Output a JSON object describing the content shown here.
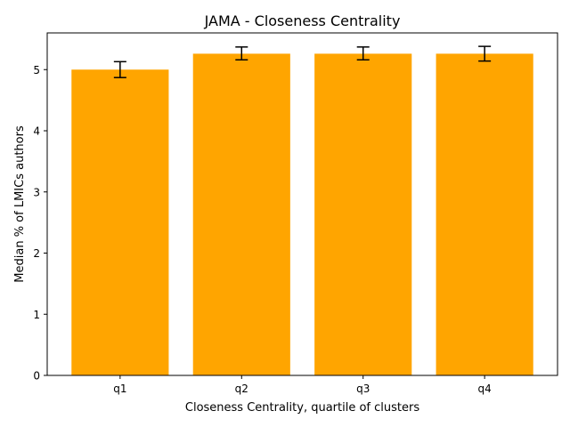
{
  "chart_data": {
    "type": "bar",
    "title": "JAMA - Closeness Centrality",
    "xlabel": "Closeness Centrality, quartile of clusters",
    "ylabel": "Median % of LMICs authors",
    "categories": [
      "q1",
      "q2",
      "q3",
      "q4"
    ],
    "values": [
      5.0,
      5.26,
      5.26,
      5.26
    ],
    "error_low": [
      4.87,
      5.16,
      5.16,
      5.14
    ],
    "error_high": [
      5.13,
      5.37,
      5.37,
      5.38
    ],
    "ylim": [
      0,
      5.6
    ],
    "yticks": [
      0,
      1,
      2,
      3,
      4,
      5
    ],
    "bar_color": "#ffa500",
    "error_color": "#000000",
    "grid": false,
    "legend": "none"
  }
}
